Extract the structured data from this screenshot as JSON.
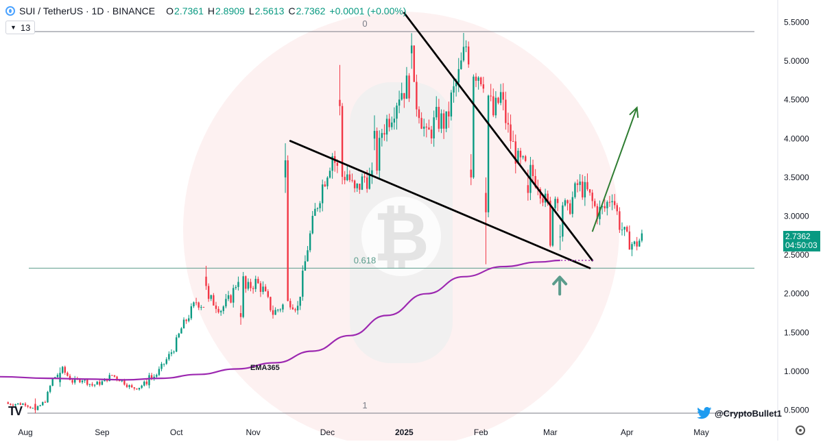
{
  "header": {
    "symbol": "SUI / TetherUS · 1D · BINANCE",
    "open_label": "O",
    "open": "2.7361",
    "high_label": "H",
    "high": "2.8909",
    "low_label": "L",
    "low": "2.5613",
    "close_label": "C",
    "close": "2.7362",
    "change": "+0.0001 (+0.00%)"
  },
  "indicator_toggle": {
    "count": "13"
  },
  "last_price": {
    "price": "2.7362",
    "countdown": "04:50:03"
  },
  "brand": {
    "handle": "@CryptoBullet1",
    "logo": "TV"
  },
  "colors": {
    "up": "#089981",
    "down": "#f23645",
    "ema": "#9c27b0",
    "fib": "#5b9c8c",
    "arrow_green": "#2e7d32",
    "trend": "#000000",
    "watermark_circle": "#fdeeee"
  },
  "chart_data": {
    "type": "candlestick",
    "x_axis": {
      "ticks": [
        "Aug",
        "Sep",
        "Oct",
        "Nov",
        "Dec",
        "2025",
        "Feb",
        "Mar",
        "Apr",
        "May"
      ]
    },
    "y_axis": {
      "ticks": [
        "0.5000",
        "1.0000",
        "1.5000",
        "2.0000",
        "2.5000",
        "3.0000",
        "3.5000",
        "4.0000",
        "4.5000",
        "5.0000",
        "5.5000"
      ],
      "range": [
        0.42,
        5.6
      ]
    },
    "fib_levels": [
      {
        "label": "0",
        "price": 5.38
      },
      {
        "label": "0.618",
        "price": 2.33
      },
      {
        "label": "1",
        "price": 0.46
      }
    ],
    "ema": {
      "label": "EMA365",
      "points": [
        [
          "2024-07-25",
          0.93
        ],
        [
          "2024-08-10",
          0.91
        ],
        [
          "2024-08-25",
          0.9
        ],
        [
          "2024-09-10",
          0.89
        ],
        [
          "2024-09-25",
          0.91
        ],
        [
          "2024-10-10",
          0.96
        ],
        [
          "2024-10-25",
          1.03
        ],
        [
          "2024-11-10",
          1.11
        ],
        [
          "2024-11-25",
          1.26
        ],
        [
          "2024-12-10",
          1.46
        ],
        [
          "2024-12-25",
          1.72
        ],
        [
          "2025-01-10",
          2.0
        ],
        [
          "2025-01-25",
          2.22
        ],
        [
          "2025-02-10",
          2.35
        ],
        [
          "2025-02-25",
          2.41
        ],
        [
          "2025-03-05",
          2.43
        ]
      ]
    },
    "annotations": [
      {
        "type": "trendline",
        "from": [
          "2024-11-16",
          3.97
        ],
        "to": [
          "2025-03-17",
          2.33
        ]
      },
      {
        "type": "trendline",
        "from": [
          "2025-01-01",
          5.62
        ],
        "to": [
          "2025-03-18",
          2.43
        ]
      },
      {
        "type": "dotted",
        "from": [
          "2025-03-04",
          2.43
        ],
        "to": [
          "2025-03-19",
          2.43
        ]
      },
      {
        "type": "arrow",
        "from": [
          "2025-03-18",
          2.8
        ],
        "to": [
          "2025-04-05",
          4.4
        ]
      },
      {
        "type": "arrow-up",
        "at": [
          "2025-03-04",
          2.1
        ]
      }
    ],
    "key_candles": [
      [
        "2024-08-05",
        0.58,
        0.65,
        0.46,
        0.5
      ],
      [
        "2024-08-15",
        0.86,
        1.05,
        0.8,
        0.98
      ],
      [
        "2024-09-20",
        0.82,
        0.98,
        0.78,
        0.95
      ],
      [
        "2024-10-13",
        2.22,
        2.36,
        2.05,
        2.1
      ],
      [
        "2024-10-27",
        1.75,
        1.85,
        1.6,
        1.7
      ],
      [
        "2024-11-14",
        3.5,
        3.94,
        3.3,
        3.72
      ],
      [
        "2024-12-06",
        4.5,
        4.95,
        4.3,
        4.42
      ],
      [
        "2024-12-20",
        4.0,
        4.3,
        3.85,
        4.1
      ],
      [
        "2025-01-04",
        5.1,
        5.36,
        4.9,
        5.2
      ],
      [
        "2025-01-28",
        3.6,
        3.8,
        3.4,
        3.5
      ],
      [
        "2025-02-03",
        3.3,
        3.5,
        2.38,
        3.05
      ],
      [
        "2025-02-20",
        3.4,
        3.6,
        3.2,
        3.3
      ],
      [
        "2025-03-01",
        3.2,
        3.25,
        2.6,
        2.62
      ],
      [
        "2025-03-05",
        2.7361,
        2.8909,
        2.5613,
        2.7362
      ]
    ]
  }
}
